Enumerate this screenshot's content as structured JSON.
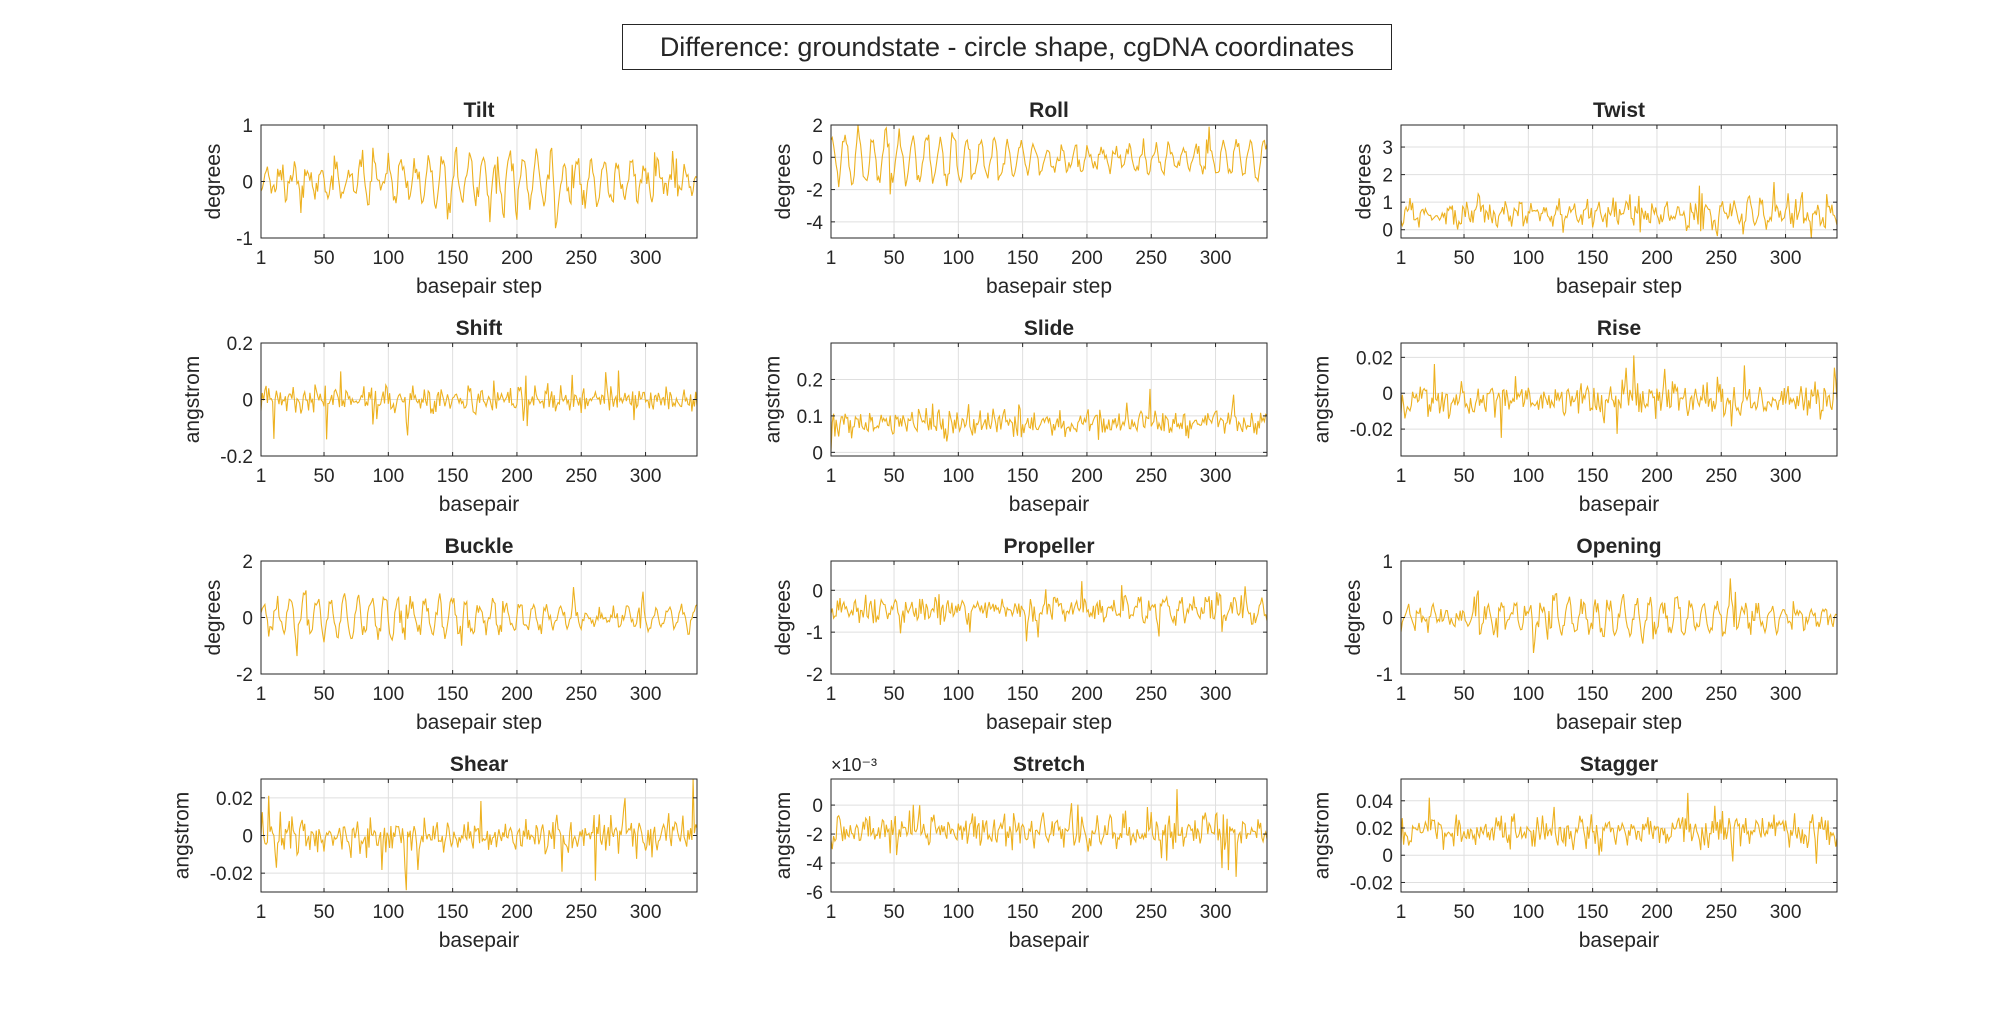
{
  "figure": {
    "title": "Difference: groundstate - circle shape, cgDNA coordinates",
    "line_color": "#EDB120"
  },
  "chart_data": [
    {
      "type": "line",
      "title": "Tilt",
      "xlabel": "basepair step",
      "ylabel": "degrees",
      "xlim": [
        1,
        340
      ],
      "ylim": [
        -1,
        1
      ],
      "xticks": [
        1,
        50,
        100,
        150,
        200,
        250,
        300
      ],
      "yticks": [
        -1,
        0,
        1
      ],
      "ytick_labels": [
        "-1",
        "0",
        "1"
      ],
      "grid": true,
      "n_points": 340,
      "approx_mean": 0.0,
      "approx_amplitude": 0.45,
      "approx_period": 10.5,
      "noise": 0.25
    },
    {
      "type": "line",
      "title": "Roll",
      "xlabel": "basepair step",
      "ylabel": "degrees",
      "xlim": [
        1,
        340
      ],
      "ylim": [
        -5,
        2
      ],
      "xticks": [
        1,
        50,
        100,
        150,
        200,
        250,
        300
      ],
      "yticks": [
        -4,
        -2,
        0,
        2
      ],
      "ytick_labels": [
        "-4",
        "-2",
        "0",
        "2"
      ],
      "grid": true,
      "n_points": 340,
      "approx_mean": -0.1,
      "approx_amplitude": 1.5,
      "approx_period": 10.5,
      "noise": 0.6
    },
    {
      "type": "line",
      "title": "Twist",
      "xlabel": "basepair step",
      "ylabel": "degrees",
      "xlim": [
        1,
        340
      ],
      "ylim": [
        -0.3,
        3.8
      ],
      "xticks": [
        1,
        50,
        100,
        150,
        200,
        250,
        300
      ],
      "yticks": [
        0,
        1,
        2,
        3
      ],
      "ytick_labels": [
        "0",
        "1",
        "2",
        "3"
      ],
      "grid": true,
      "n_points": 340,
      "approx_mean": 0.6,
      "approx_amplitude": 0.35,
      "approx_period": 10.5,
      "noise": 0.5
    },
    {
      "type": "line",
      "title": "Shift",
      "xlabel": "basepair",
      "ylabel": "angstrom",
      "xlim": [
        1,
        340
      ],
      "ylim": [
        -0.2,
        0.2
      ],
      "xticks": [
        1,
        50,
        100,
        150,
        200,
        250,
        300
      ],
      "yticks": [
        -0.2,
        0,
        0.2
      ],
      "ytick_labels": [
        "-0.2",
        "0",
        "0.2"
      ],
      "grid": true,
      "n_points": 340,
      "approx_mean": 0.0,
      "approx_amplitude": 0.02,
      "approx_period": 10.5,
      "noise": 0.05
    },
    {
      "type": "line",
      "title": "Slide",
      "xlabel": "basepair",
      "ylabel": "angstrom",
      "xlim": [
        1,
        340
      ],
      "ylim": [
        -0.01,
        0.3
      ],
      "xticks": [
        1,
        50,
        100,
        150,
        200,
        250,
        300
      ],
      "yticks": [
        0,
        0.1,
        0.2
      ],
      "ytick_labels": [
        "0",
        "0.1",
        "0.2"
      ],
      "grid": true,
      "n_points": 340,
      "approx_mean": 0.08,
      "approx_amplitude": 0.01,
      "approx_period": 10.5,
      "noise": 0.04
    },
    {
      "type": "line",
      "title": "Rise",
      "xlabel": "basepair",
      "ylabel": "angstrom",
      "xlim": [
        1,
        340
      ],
      "ylim": [
        -0.035,
        0.028
      ],
      "xticks": [
        1,
        50,
        100,
        150,
        200,
        250,
        300
      ],
      "yticks": [
        -0.02,
        0,
        0.02
      ],
      "ytick_labels": [
        "-0.02",
        "0",
        "0.02"
      ],
      "grid": true,
      "n_points": 340,
      "approx_mean": -0.003,
      "approx_amplitude": 0.003,
      "approx_period": 10.5,
      "noise": 0.01
    },
    {
      "type": "line",
      "title": "Buckle",
      "xlabel": "basepair step",
      "ylabel": "degrees",
      "xlim": [
        1,
        340
      ],
      "ylim": [
        -2,
        2
      ],
      "xticks": [
        1,
        50,
        100,
        150,
        200,
        250,
        300
      ],
      "yticks": [
        -2,
        0,
        2
      ],
      "ytick_labels": [
        "-2",
        "0",
        "2"
      ],
      "grid": true,
      "n_points": 340,
      "approx_mean": 0.0,
      "approx_amplitude": 0.7,
      "approx_period": 10.5,
      "noise": 0.35
    },
    {
      "type": "line",
      "title": "Propeller",
      "xlabel": "basepair step",
      "ylabel": "degrees",
      "xlim": [
        1,
        340
      ],
      "ylim": [
        -2,
        0.7
      ],
      "xticks": [
        1,
        50,
        100,
        150,
        200,
        250,
        300
      ],
      "yticks": [
        -2,
        -1,
        0
      ],
      "ytick_labels": [
        "-2",
        "-1",
        "0"
      ],
      "grid": true,
      "n_points": 340,
      "approx_mean": -0.45,
      "approx_amplitude": 0.2,
      "approx_period": 10.5,
      "noise": 0.3
    },
    {
      "type": "line",
      "title": "Opening",
      "xlabel": "basepair step",
      "ylabel": "degrees",
      "xlim": [
        1,
        340
      ],
      "ylim": [
        -1,
        1
      ],
      "xticks": [
        1,
        50,
        100,
        150,
        200,
        250,
        300
      ],
      "yticks": [
        -1,
        0,
        1
      ],
      "ytick_labels": [
        "-1",
        "0",
        "1"
      ],
      "grid": true,
      "n_points": 340,
      "approx_mean": 0.0,
      "approx_amplitude": 0.3,
      "approx_period": 10.5,
      "noise": 0.2
    },
    {
      "type": "line",
      "title": "Shear",
      "xlabel": "basepair",
      "ylabel": "angstrom",
      "xlim": [
        1,
        340
      ],
      "ylim": [
        -0.03,
        0.03
      ],
      "xticks": [
        1,
        50,
        100,
        150,
        200,
        250,
        300
      ],
      "yticks": [
        -0.02,
        0,
        0.02
      ],
      "ytick_labels": [
        "-0.02",
        "0",
        "0.02"
      ],
      "grid": true,
      "n_points": 340,
      "approx_mean": 0.0,
      "approx_amplitude": 0.003,
      "approx_period": 10.5,
      "noise": 0.01
    },
    {
      "type": "line",
      "title": "Stretch",
      "xlabel": "basepair",
      "ylabel": "angstrom",
      "xlim": [
        1,
        340
      ],
      "ylim": [
        -0.006,
        0.0018
      ],
      "xticks": [
        1,
        50,
        100,
        150,
        200,
        250,
        300
      ],
      "yticks": [
        -0.006,
        -0.004,
        -0.002,
        0
      ],
      "ytick_labels": [
        "-6",
        "-4",
        "-2",
        "0"
      ],
      "exponent_label": "×10⁻³",
      "grid": true,
      "n_points": 340,
      "approx_mean": -0.0018,
      "approx_amplitude": 0.0004,
      "approx_period": 10.5,
      "noise": 0.0013
    },
    {
      "type": "line",
      "title": "Stagger",
      "xlabel": "basepair",
      "ylabel": "angstrom",
      "xlim": [
        1,
        340
      ],
      "ylim": [
        -0.027,
        0.056
      ],
      "xticks": [
        1,
        50,
        100,
        150,
        200,
        250,
        300
      ],
      "yticks": [
        -0.02,
        0,
        0.02,
        0.04
      ],
      "ytick_labels": [
        "-0.02",
        "0",
        "0.02",
        "0.04"
      ],
      "grid": true,
      "n_points": 340,
      "approx_mean": 0.018,
      "approx_amplitude": 0.004,
      "approx_period": 10.5,
      "noise": 0.013
    }
  ]
}
